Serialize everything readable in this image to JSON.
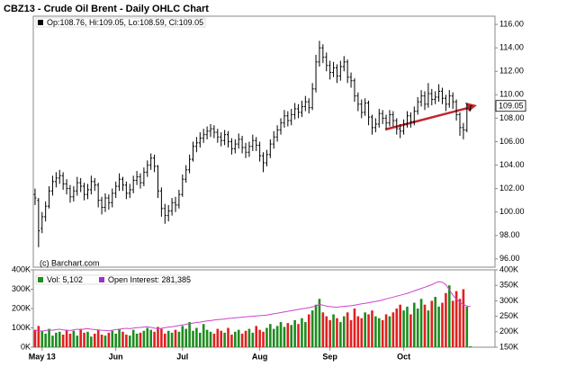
{
  "chart_data": [
    {
      "type": "ohlc",
      "title": "CBZ13 - Crude Oil Brent - Daily OHLC Chart",
      "legend_text": "Op:108.76, Hi:109.05, Lo:108.59, Cl:109.05",
      "watermark": "(c) Barchart.com",
      "color": "#000000",
      "xlim": [
        -0.5,
        131
      ],
      "xticks": [
        {
          "value": 2,
          "label": "May 13"
        },
        {
          "value": 23,
          "label": "Jun"
        },
        {
          "value": 42,
          "label": "Jul"
        },
        {
          "value": 64,
          "label": "Aug"
        },
        {
          "value": 84,
          "label": "Sep"
        },
        {
          "value": 105,
          "label": "Oct"
        }
      ],
      "ylim": [
        95.3,
        116.7
      ],
      "yticks": [
        {
          "value": 96,
          "label": "96.00"
        },
        {
          "value": 98,
          "label": "98.00"
        },
        {
          "value": 100,
          "label": "100.00"
        },
        {
          "value": 102,
          "label": "102.00"
        },
        {
          "value": 104,
          "label": "104.00"
        },
        {
          "value": 106,
          "label": "106.00"
        },
        {
          "value": 108,
          "label": "108.00"
        },
        {
          "value": 110,
          "label": "110.00"
        },
        {
          "value": 112,
          "label": "112.00"
        },
        {
          "value": 114,
          "label": "114.00"
        },
        {
          "value": 116,
          "label": "116.00"
        }
      ],
      "ohlc": [
        [
          101.5,
          102.0,
          100.6,
          101.2
        ],
        [
          101.0,
          101.2,
          97.0,
          98.4
        ],
        [
          98.6,
          100.0,
          98.2,
          99.6
        ],
        [
          99.6,
          100.9,
          99.2,
          100.5
        ],
        [
          100.5,
          102.2,
          100.3,
          101.8
        ],
        [
          101.8,
          103.1,
          101.4,
          102.6
        ],
        [
          102.6,
          103.4,
          102.1,
          102.9
        ],
        [
          102.9,
          103.6,
          102.4,
          103.1
        ],
        [
          103.1,
          103.4,
          101.9,
          102.4
        ],
        [
          102.4,
          102.8,
          101.5,
          102.0
        ],
        [
          102.0,
          102.3,
          100.8,
          101.3
        ],
        [
          101.3,
          102.2,
          100.9,
          101.8
        ],
        [
          101.8,
          103.0,
          101.4,
          102.5
        ],
        [
          102.5,
          102.9,
          101.7,
          102.2
        ],
        [
          102.2,
          102.5,
          101.0,
          101.5
        ],
        [
          101.5,
          102.4,
          101.1,
          101.9
        ],
        [
          101.9,
          103.1,
          101.5,
          102.6
        ],
        [
          102.6,
          102.9,
          101.8,
          102.3
        ],
        [
          102.3,
          102.5,
          100.4,
          101.0
        ],
        [
          101.0,
          101.3,
          99.8,
          100.4
        ],
        [
          100.4,
          101.6,
          100.0,
          101.2
        ],
        [
          101.2,
          101.5,
          100.2,
          100.8
        ],
        [
          100.8,
          102.0,
          100.4,
          101.6
        ],
        [
          101.6,
          102.6,
          101.2,
          102.2
        ],
        [
          102.2,
          103.3,
          101.8,
          102.8
        ],
        [
          102.8,
          103.0,
          101.8,
          102.3
        ],
        [
          102.3,
          102.6,
          101.1,
          101.6
        ],
        [
          101.6,
          102.4,
          101.2,
          101.9
        ],
        [
          101.9,
          103.1,
          101.6,
          102.7
        ],
        [
          102.7,
          103.5,
          102.3,
          103.0
        ],
        [
          103.0,
          103.3,
          102.0,
          102.5
        ],
        [
          102.5,
          103.8,
          102.2,
          103.4
        ],
        [
          103.4,
          104.4,
          103.0,
          104.0
        ],
        [
          104.0,
          105.0,
          103.6,
          104.6
        ],
        [
          104.6,
          104.9,
          103.4,
          103.9
        ],
        [
          103.9,
          104.0,
          101.2,
          101.8
        ],
        [
          101.8,
          102.1,
          99.6,
          100.3
        ],
        [
          100.3,
          100.7,
          99.0,
          99.7
        ],
        [
          99.7,
          100.6,
          99.2,
          100.1
        ],
        [
          100.1,
          101.2,
          99.7,
          100.8
        ],
        [
          100.8,
          101.3,
          100.0,
          100.6
        ],
        [
          100.6,
          101.9,
          100.3,
          101.5
        ],
        [
          101.5,
          103.2,
          101.3,
          102.8
        ],
        [
          102.8,
          104.0,
          102.5,
          103.6
        ],
        [
          103.6,
          104.9,
          103.3,
          104.5
        ],
        [
          104.5,
          106.0,
          104.3,
          105.6
        ],
        [
          105.6,
          106.4,
          105.1,
          105.9
        ],
        [
          105.9,
          106.8,
          105.5,
          106.3
        ],
        [
          106.3,
          107.1,
          105.9,
          106.6
        ],
        [
          106.6,
          107.3,
          106.2,
          106.9
        ],
        [
          106.9,
          107.5,
          106.4,
          107.1
        ],
        [
          107.1,
          107.4,
          106.3,
          106.8
        ],
        [
          106.8,
          107.1,
          105.9,
          106.4
        ],
        [
          106.4,
          106.8,
          105.6,
          106.1
        ],
        [
          106.1,
          107.0,
          105.7,
          106.6
        ],
        [
          106.6,
          106.9,
          105.5,
          106.0
        ],
        [
          106.0,
          106.3,
          104.9,
          105.4
        ],
        [
          105.4,
          106.2,
          105.0,
          105.8
        ],
        [
          105.8,
          106.7,
          105.4,
          106.2
        ],
        [
          106.2,
          106.5,
          105.0,
          105.5
        ],
        [
          105.5,
          105.9,
          104.6,
          105.1
        ],
        [
          105.1,
          106.0,
          104.7,
          105.6
        ],
        [
          105.6,
          106.6,
          105.2,
          106.1
        ],
        [
          106.1,
          106.4,
          105.2,
          105.7
        ],
        [
          105.7,
          106.0,
          104.3,
          104.8
        ],
        [
          104.8,
          105.1,
          103.4,
          104.2
        ],
        [
          104.2,
          105.3,
          103.9,
          104.9
        ],
        [
          104.9,
          106.2,
          104.6,
          105.8
        ],
        [
          105.8,
          106.9,
          105.4,
          106.4
        ],
        [
          106.4,
          107.4,
          106.0,
          107.0
        ],
        [
          107.0,
          108.0,
          106.6,
          107.6
        ],
        [
          107.6,
          108.7,
          107.2,
          108.2
        ],
        [
          108.2,
          108.6,
          107.3,
          107.8
        ],
        [
          107.8,
          108.8,
          107.4,
          108.3
        ],
        [
          108.3,
          109.3,
          107.9,
          108.8
        ],
        [
          108.8,
          109.2,
          108.0,
          108.5
        ],
        [
          108.5,
          109.5,
          108.1,
          109.0
        ],
        [
          109.0,
          109.9,
          108.6,
          109.4
        ],
        [
          109.4,
          109.7,
          108.4,
          108.9
        ],
        [
          108.9,
          111.0,
          108.7,
          110.5
        ],
        [
          110.5,
          113.4,
          110.2,
          112.8
        ],
        [
          112.8,
          114.6,
          112.4,
          114.0
        ],
        [
          114.0,
          114.3,
          112.7,
          113.2
        ],
        [
          113.2,
          113.6,
          112.0,
          112.5
        ],
        [
          112.5,
          112.9,
          111.3,
          111.9
        ],
        [
          111.9,
          112.8,
          111.5,
          112.3
        ],
        [
          112.3,
          112.6,
          111.0,
          111.6
        ],
        [
          111.6,
          112.9,
          111.2,
          112.4
        ],
        [
          112.4,
          113.3,
          112.0,
          112.8
        ],
        [
          112.8,
          113.0,
          111.0,
          111.5
        ],
        [
          111.5,
          111.9,
          110.6,
          111.2
        ],
        [
          111.2,
          111.4,
          109.4,
          109.9
        ],
        [
          109.9,
          110.2,
          108.6,
          109.2
        ],
        [
          109.2,
          109.6,
          108.0,
          108.5
        ],
        [
          108.5,
          109.7,
          108.2,
          109.3
        ],
        [
          109.3,
          109.5,
          107.4,
          108.1
        ],
        [
          108.1,
          108.3,
          106.6,
          107.2
        ],
        [
          107.2,
          108.0,
          106.8,
          107.5
        ],
        [
          107.5,
          108.8,
          107.2,
          108.4
        ],
        [
          108.4,
          108.7,
          107.5,
          108.0
        ],
        [
          108.0,
          108.3,
          107.1,
          107.6
        ],
        [
          107.6,
          108.7,
          107.3,
          108.3
        ],
        [
          108.3,
          108.6,
          107.3,
          107.8
        ],
        [
          107.8,
          108.0,
          106.6,
          107.1
        ],
        [
          107.1,
          107.5,
          106.3,
          106.9
        ],
        [
          106.9,
          107.9,
          106.6,
          107.5
        ],
        [
          107.5,
          108.6,
          107.2,
          108.2
        ],
        [
          108.2,
          108.5,
          107.2,
          107.7
        ],
        [
          107.7,
          109.0,
          107.4,
          108.6
        ],
        [
          108.6,
          109.8,
          108.3,
          109.4
        ],
        [
          109.4,
          110.4,
          109.0,
          109.9
        ],
        [
          109.9,
          110.3,
          108.7,
          109.2
        ],
        [
          109.2,
          111.0,
          108.9,
          110.1
        ],
        [
          110.1,
          110.5,
          109.1,
          109.6
        ],
        [
          109.6,
          110.3,
          109.2,
          109.8
        ],
        [
          109.8,
          110.9,
          109.4,
          110.3
        ],
        [
          110.3,
          110.6,
          109.2,
          109.7
        ],
        [
          109.7,
          110.0,
          108.6,
          109.2
        ],
        [
          109.2,
          110.4,
          108.9,
          109.9
        ],
        [
          109.9,
          110.2,
          108.8,
          109.4
        ],
        [
          109.4,
          109.6,
          107.8,
          108.3
        ],
        [
          108.3,
          108.5,
          106.5,
          107.2
        ],
        [
          107.2,
          107.6,
          106.2,
          107.0
        ],
        [
          107.0,
          109.3,
          106.8,
          108.8
        ],
        [
          108.76,
          109.05,
          108.59,
          109.05
        ]
      ]
    },
    {
      "type": "volume",
      "xlim": [
        -0.5,
        131
      ],
      "ylim": [
        0,
        400000
      ],
      "yticks": [
        {
          "value": 0,
          "label": "0K"
        },
        {
          "value": 100000,
          "label": "100K"
        },
        {
          "value": 200000,
          "label": "200K"
        },
        {
          "value": 300000,
          "label": "300K"
        },
        {
          "value": 400000,
          "label": "400K"
        }
      ],
      "y2lim": [
        150000,
        400000
      ],
      "y2ticks": [
        {
          "value": 150000,
          "label": "150K"
        },
        {
          "value": 200000,
          "label": "200K"
        },
        {
          "value": 250000,
          "label": "250K"
        },
        {
          "value": 300000,
          "label": "300K"
        },
        {
          "value": 350000,
          "label": "350K"
        },
        {
          "value": 400000,
          "label": "400K"
        }
      ],
      "series": [
        {
          "name": "Vol: 5,102",
          "color": "#1e8c1e",
          "down_color": "#e02020",
          "values": [
            90000,
            110000,
            85000,
            70000,
            95000,
            60000,
            75000,
            80000,
            65000,
            90000,
            70000,
            85000,
            60000,
            95000,
            75000,
            80000,
            55000,
            70000,
            90000,
            65000,
            60000,
            75000,
            85000,
            70000,
            95000,
            80000,
            65000,
            60000,
            90000,
            70000,
            75000,
            85000,
            100000,
            90000,
            80000,
            105000,
            95000,
            70000,
            85000,
            75000,
            90000,
            80000,
            110000,
            95000,
            130000,
            85000,
            100000,
            75000,
            120000,
            90000,
            80000,
            70000,
            95000,
            85000,
            75000,
            100000,
            65000,
            80000,
            90000,
            70000,
            85000,
            95000,
            75000,
            110000,
            90000,
            80000,
            100000,
            120000,
            95000,
            110000,
            130000,
            105000,
            125000,
            115000,
            140000,
            120000,
            150000,
            130000,
            170000,
            190000,
            220000,
            250000,
            180000,
            160000,
            140000,
            170000,
            150000,
            130000,
            160000,
            180000,
            140000,
            200000,
            160000,
            150000,
            180000,
            170000,
            190000,
            160000,
            150000,
            140000,
            170000,
            160000,
            180000,
            200000,
            220000,
            190000,
            210000,
            170000,
            230000,
            200000,
            250000,
            220000,
            190000,
            240000,
            260000,
            210000,
            230000,
            280000,
            320000,
            240000,
            290000,
            250000,
            300000,
            210000,
            5102
          ]
        },
        {
          "name": "Open Interest: 281,385",
          "color": "#cc44cc",
          "axis": "y2",
          "values": [
            205000,
            203000,
            202000,
            204000,
            206000,
            205000,
            207000,
            208000,
            206000,
            205000,
            204000,
            206000,
            208000,
            207000,
            209000,
            210000,
            208000,
            207000,
            206000,
            205000,
            204000,
            203000,
            205000,
            207000,
            208000,
            210000,
            211000,
            210000,
            212000,
            213000,
            214000,
            215000,
            216000,
            214000,
            212000,
            210000,
            211000,
            213000,
            215000,
            216000,
            218000,
            220000,
            222000,
            224000,
            226000,
            228000,
            230000,
            231000,
            233000,
            235000,
            236000,
            238000,
            239000,
            240000,
            241000,
            243000,
            244000,
            245000,
            246000,
            247000,
            248000,
            249000,
            250000,
            251000,
            252000,
            253000,
            254000,
            256000,
            258000,
            260000,
            262000,
            264000,
            266000,
            268000,
            270000,
            272000,
            274000,
            276000,
            278000,
            280000,
            284000,
            288000,
            286000,
            283000,
            281000,
            280000,
            279000,
            281000,
            282000,
            283000,
            284000,
            286000,
            288000,
            290000,
            292000,
            294000,
            296000,
            298000,
            300000,
            303000,
            306000,
            309000,
            312000,
            315000,
            318000,
            321000,
            324000,
            328000,
            332000,
            336000,
            340000,
            344000,
            348000,
            352000,
            358000,
            362000,
            360000,
            352000,
            335000,
            318000,
            305000,
            295000,
            288000,
            283000,
            281385
          ]
        }
      ]
    }
  ]
}
